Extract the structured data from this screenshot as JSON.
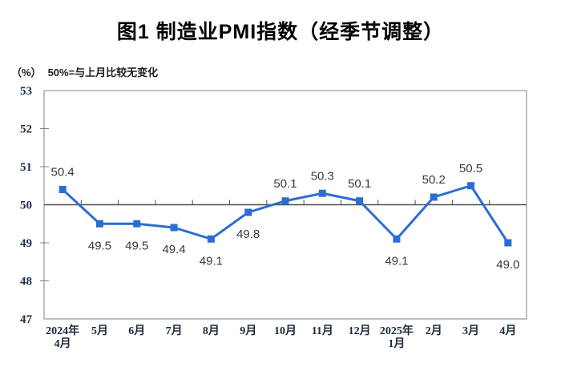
{
  "title": "图1  制造业PMI指数（经季节调整）",
  "subtitle": {
    "unit_label": "（%）",
    "note": "50%=与上月比较无变化"
  },
  "chart_data": {
    "type": "line",
    "title": "图1  制造业PMI指数（经季节调整）",
    "xlabel": "",
    "ylabel": "%",
    "categories": [
      "2024年\n4月",
      "5月",
      "6月",
      "7月",
      "8月",
      "9月",
      "10月",
      "11月",
      "12月",
      "2025年\n1月",
      "2月",
      "3月",
      "4月"
    ],
    "series": [
      {
        "name": "制造业PMI",
        "values": [
          50.4,
          49.5,
          49.5,
          49.4,
          49.1,
          49.8,
          50.1,
          50.3,
          50.1,
          49.1,
          50.2,
          50.5,
          49.0
        ],
        "value_labels": [
          "50.4",
          "49.5",
          "49.5",
          "49.4",
          "49.1",
          "49.8",
          "50.1",
          "50.3",
          "50.1",
          "49.1",
          "50.2",
          "50.5",
          "49.0"
        ]
      }
    ],
    "ylim": [
      47,
      53
    ],
    "yticks": [
      47,
      48,
      49,
      50,
      51,
      52,
      53
    ],
    "reference_line": 50,
    "grid": false,
    "legend": "none",
    "colors": {
      "line": "#2b6dd3",
      "marker": "#2b6dd3",
      "plot_border": "#808080",
      "reference_line": "#4d4d4d"
    },
    "marker_shape": "square"
  }
}
